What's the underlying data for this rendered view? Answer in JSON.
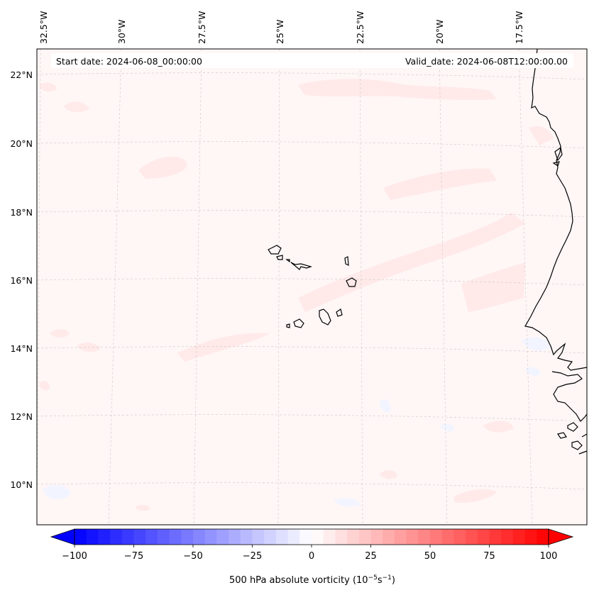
{
  "info": {
    "start_date": "Start date: 2024-06-08_00:00:00",
    "valid_date": "Valid_date: 2024-06-08T12:00:00.00"
  },
  "map": {
    "lon_labels": [
      "32.5°W",
      "30°W",
      "27.5°W",
      "25°W",
      "22.5°W",
      "20°W",
      "17.5°W"
    ],
    "lat_labels": [
      "22°N",
      "20°N",
      "18°N",
      "16°N",
      "14°N",
      "12°N",
      "10°N"
    ],
    "field_colors": {
      "background": "#fff6f6",
      "positive_patch": "#ffe8e8",
      "negative_patch": "#f4f6ff",
      "coastline": "#000000"
    }
  },
  "colorbar": {
    "title_prefix": "500 hPa absolute vorticity (10",
    "title_exp1": "−5",
    "title_mid": "s",
    "title_exp2": "−1",
    "title_suffix": ")",
    "tick_labels": [
      "−100",
      "−75",
      "−50",
      "−25",
      "0",
      "25",
      "50",
      "75",
      "100"
    ],
    "min": -100,
    "max": 100,
    "step": 5,
    "color_min": "#0000ff",
    "color_mid": "#ffffff",
    "color_max": "#ff0000"
  }
}
